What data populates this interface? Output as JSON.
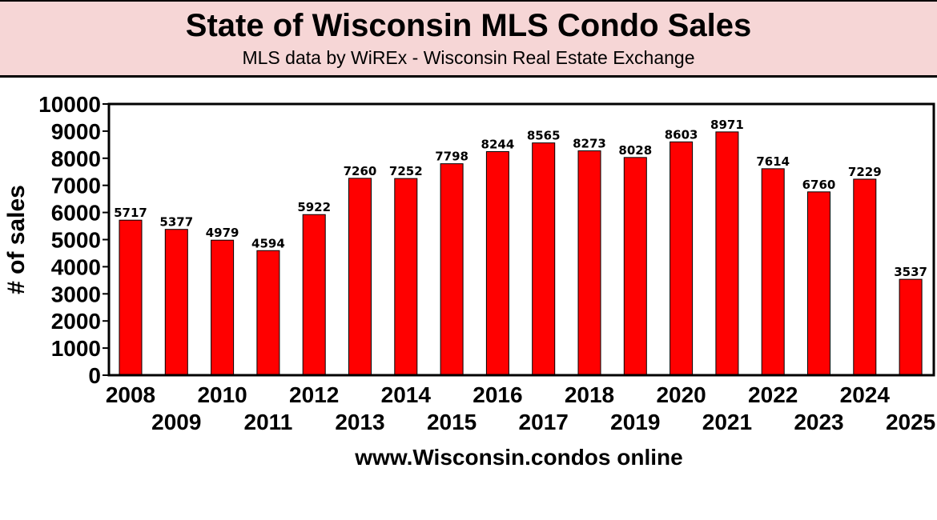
{
  "header": {
    "title": "State of Wisconsin MLS Condo Sales",
    "subtitle": "MLS data by WiREx - Wisconsin Real Estate Exchange",
    "background": "#f6d6d6"
  },
  "chart_data": {
    "type": "bar",
    "title": "State of Wisconsin MLS Condo Sales",
    "subtitle": "MLS data by WiREx - Wisconsin Real Estate Exchange",
    "xlabel": "www.Wisconsin.condos online",
    "ylabel": "# of sales",
    "ylim": [
      0,
      10000
    ],
    "yticks": [
      0,
      1000,
      2000,
      3000,
      4000,
      5000,
      6000,
      7000,
      8000,
      9000,
      10000
    ],
    "categories": [
      "2008",
      "2009",
      "2010",
      "2011",
      "2012",
      "2013",
      "2014",
      "2015",
      "2016",
      "2017",
      "2018",
      "2019",
      "2020",
      "2021",
      "2022",
      "2023",
      "2024",
      "2025"
    ],
    "values": [
      5717,
      5377,
      4979,
      4594,
      5922,
      7260,
      7252,
      7798,
      8244,
      8565,
      8273,
      8028,
      8603,
      8971,
      7614,
      6760,
      7229,
      3537
    ],
    "bar_color": "#ff0000",
    "grid": false,
    "legend": "none"
  }
}
